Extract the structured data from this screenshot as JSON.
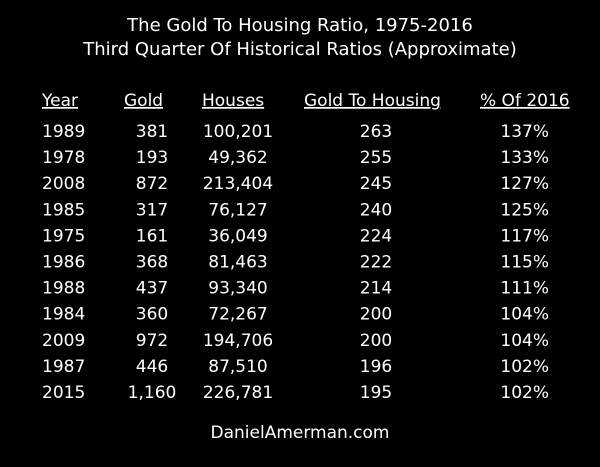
{
  "title": "The Gold To Housing Ratio, 1975-2016",
  "subtitle": "Third Quarter Of Historical Ratios (Approximate)",
  "footer": "DanielAmerman.com",
  "chart_data": {
    "type": "table",
    "title": "The Gold To Housing Ratio, 1975-2016",
    "subtitle": "Third Quarter Of Historical Ratios (Approximate)",
    "columns": [
      "Year",
      "Gold",
      "Houses",
      "Gold To Housing",
      "% Of 2016"
    ],
    "rows": [
      [
        "1989",
        "381",
        "100,201",
        "263",
        "137%"
      ],
      [
        "1978",
        "193",
        "49,362",
        "255",
        "133%"
      ],
      [
        "2008",
        "872",
        "213,404",
        "245",
        "127%"
      ],
      [
        "1985",
        "317",
        "76,127",
        "240",
        "125%"
      ],
      [
        "1975",
        "161",
        "36,049",
        "224",
        "117%"
      ],
      [
        "1986",
        "368",
        "81,463",
        "222",
        "115%"
      ],
      [
        "1988",
        "437",
        "93,340",
        "214",
        "111%"
      ],
      [
        "1984",
        "360",
        "72,267",
        "200",
        "104%"
      ],
      [
        "2009",
        "972",
        "194,706",
        "200",
        "104%"
      ],
      [
        "1987",
        "446",
        "87,510",
        "196",
        "102%"
      ],
      [
        "2015",
        "1,160",
        "226,781",
        "195",
        "102%"
      ]
    ]
  }
}
